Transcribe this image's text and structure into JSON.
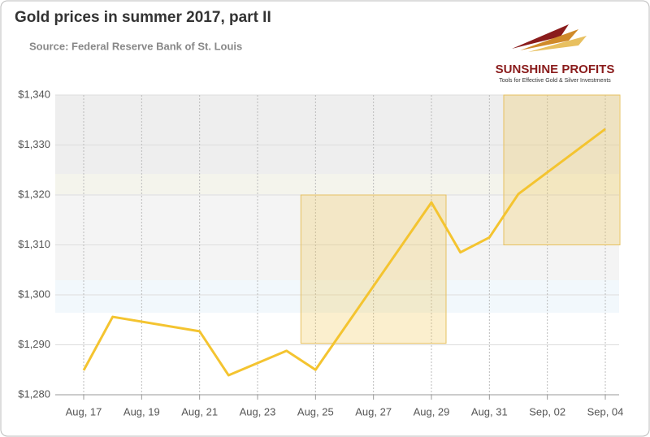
{
  "chart_data": {
    "type": "line",
    "title": "Gold prices in summer 2017, part II",
    "subtitle": "Source: Federal Reserve Bank of St. Louis",
    "logo": {
      "name": "SUNSHINE PROFITS",
      "tagline": "Tools for Effective Gold & Silver Investments"
    },
    "x": [
      "Aug, 17",
      "Aug, 18",
      "Aug, 21",
      "Aug, 22",
      "Aug, 24",
      "Aug, 25",
      "Aug, 29",
      "Aug, 30",
      "Aug, 31",
      "Sep, 01",
      "Sep, 04"
    ],
    "series": [
      {
        "name": "Gold price",
        "color": "#f4c430",
        "values": [
          1284.9,
          1295.6,
          1292.7,
          1283.9,
          1288.8,
          1285.0,
          1318.5,
          1308.5,
          1311.5,
          1320.2,
          1333.2
        ]
      }
    ],
    "highlights": [
      {
        "x": [
          "Aug, 25",
          "Aug, 29"
        ],
        "y": [
          1290.3,
          1320
        ]
      },
      {
        "x": [
          "Sep, 01",
          "Sep, 04"
        ],
        "y": [
          1310,
          1340
        ]
      }
    ],
    "ylim": [
      1280,
      1340
    ],
    "yticks": [
      {
        "value": 1280,
        "label": "$1,280"
      },
      {
        "value": 1290,
        "label": "$1,290"
      },
      {
        "value": 1300,
        "label": "$1,300"
      },
      {
        "value": 1310,
        "label": "$1,310"
      },
      {
        "value": 1320,
        "label": "$1,320"
      },
      {
        "value": 1330,
        "label": "$1,330"
      },
      {
        "value": 1340,
        "label": "$1,340"
      }
    ],
    "xticks": [
      "Aug, 17",
      "Aug, 19",
      "Aug, 21",
      "Aug, 23",
      "Aug, 25",
      "Aug, 27",
      "Aug, 29",
      "Aug, 31",
      "Sep, 02",
      "Sep, 04"
    ],
    "grid": true
  }
}
